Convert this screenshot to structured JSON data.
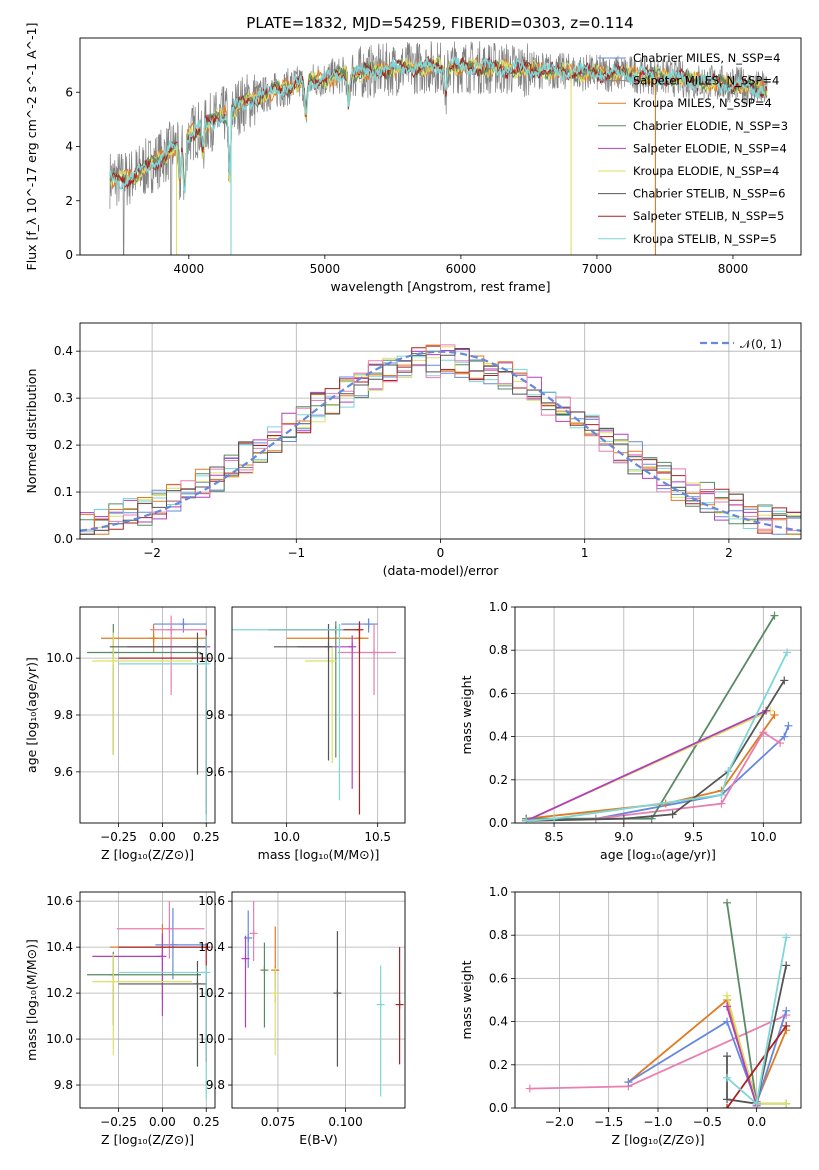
{
  "page_title": "PLATE=1832, MJD=54259, FIBERID=0303, z=0.114",
  "palette": {
    "c_miles": "#6688dd",
    "s_miles": "#888888",
    "k_miles": "#e07b22",
    "c_elodie": "#5a8a64",
    "s_elodie": "#b23fbe",
    "k_elodie": "#dde067",
    "c_stelib": "#555555",
    "s_stelib": "#aa2222",
    "k_stelib": "#7fd6d6",
    "pink": "#e87fb0",
    "gray_data": "#808080"
  },
  "chart_data": [
    {
      "id": "spectrum",
      "type": "line",
      "title": "PLATE=1832, MJD=54259, FIBERID=0303, z=0.114",
      "xlabel": "wavelength [Angstrom, rest frame]",
      "ylabel": "Flux [f_λ 10^-17 erg cm^-2 s^-1 A^-1]",
      "xlim": [
        3200,
        8500
      ],
      "ylim": [
        0,
        8
      ],
      "xticks": [
        "4000",
        "5000",
        "6000",
        "7000",
        "8000"
      ],
      "yticks": [
        "0",
        "2",
        "4",
        "6"
      ],
      "grid": false,
      "legend_position": "upper right",
      "legend": [
        {
          "label": "Chabrier MILES, N_SSP=4",
          "color": "c_miles"
        },
        {
          "label": "Salpeter MILES, N_SSP=4",
          "color": "s_miles"
        },
        {
          "label": "Kroupa MILES, N_SSP=4",
          "color": "k_miles"
        },
        {
          "label": "Chabrier ELODIE, N_SSP=3",
          "color": "c_elodie"
        },
        {
          "label": "Salpeter ELODIE, N_SSP=4",
          "color": "s_elodie"
        },
        {
          "label": "Kroupa ELODIE, N_SSP=4",
          "color": "k_elodie"
        },
        {
          "label": "Chabrier STELIB, N_SSP=6",
          "color": "c_stelib"
        },
        {
          "label": "Salpeter STELIB, N_SSP=5",
          "color": "s_stelib"
        },
        {
          "label": "Kroupa STELIB, N_SSP=5",
          "color": "k_stelib"
        }
      ],
      "continuum_points": [
        [
          3420,
          2.8
        ],
        [
          3550,
          2.8
        ],
        [
          3650,
          3.1
        ],
        [
          3800,
          3.6
        ],
        [
          3950,
          4.2
        ],
        [
          4050,
          4.6
        ],
        [
          4200,
          5.0
        ],
        [
          4400,
          5.6
        ],
        [
          4600,
          6.0
        ],
        [
          4800,
          6.3
        ],
        [
          5000,
          6.5
        ],
        [
          5200,
          6.7
        ],
        [
          5400,
          6.8
        ],
        [
          5600,
          6.9
        ],
        [
          5800,
          6.95
        ],
        [
          6000,
          6.95
        ],
        [
          6200,
          6.9
        ],
        [
          6400,
          6.85
        ],
        [
          6600,
          6.8
        ],
        [
          6800,
          6.75
        ],
        [
          7000,
          6.7
        ],
        [
          7200,
          6.7
        ],
        [
          7400,
          6.6
        ],
        [
          7600,
          6.5
        ],
        [
          7800,
          6.35
        ],
        [
          8000,
          6.3
        ],
        [
          8200,
          6.1
        ]
      ]
    },
    {
      "id": "residuals",
      "type": "line",
      "xlabel": "(data-model)/error",
      "ylabel": "Normed distribution",
      "xlim": [
        -2.5,
        2.5
      ],
      "ylim": [
        0,
        0.46
      ],
      "xticks": [
        "−2",
        "−1",
        "0",
        "1",
        "2"
      ],
      "yticks": [
        "0.0",
        "0.1",
        "0.2",
        "0.3",
        "0.4"
      ],
      "grid": true,
      "legend_position": "upper right",
      "legend": [
        {
          "label": "𝒩(0, 1)",
          "color": "c_miles"
        }
      ],
      "bin_width": 0.1
    },
    {
      "id": "age_vs_z",
      "type": "scatter",
      "xlabel": "Z [log₁₀(Z/Z⊙)]",
      "ylabel": "age  [log₁₀(age/yr)]",
      "xlim": [
        -0.47,
        0.3
      ],
      "ylim": [
        9.42,
        10.18
      ],
      "xticks": [
        "−0.25",
        "0.00",
        "0.25"
      ],
      "yticks": [
        "9.6",
        "9.8",
        "10.0"
      ],
      "grid": true,
      "points": [
        {
          "c": "c_miles",
          "x": 0.12,
          "y": 10.12,
          "xe": [
            0.17,
            0.13
          ],
          "ye": [
            0.03,
            0.02
          ]
        },
        {
          "c": "k_miles",
          "x": -0.05,
          "y": 10.07,
          "xe": [
            0.3,
            0.3
          ],
          "ye": [
            0.05,
            0.05
          ]
        },
        {
          "c": "pink",
          "x": 0.05,
          "y": 10.1,
          "xe": [
            0.12,
            0.2
          ],
          "ye": [
            0.23,
            0.05
          ]
        },
        {
          "c": "c_elodie",
          "x": -0.28,
          "y": 10.02,
          "xe": [
            0.15,
            0.5
          ],
          "ye": [
            0.36,
            0.1
          ]
        },
        {
          "c": "k_elodie",
          "x": -0.28,
          "y": 9.99,
          "xe": [
            0.12,
            0.45
          ],
          "ye": [
            0.33,
            0.1
          ]
        },
        {
          "c": "s_elodie",
          "x": 0.25,
          "y": 10.04,
          "xe": [
            0.45,
            0.0
          ],
          "ye": [
            0.55,
            0.04
          ]
        },
        {
          "c": "c_stelib",
          "x": 0.2,
          "y": 10.04,
          "xe": [
            0.5,
            0.05
          ],
          "ye": [
            0.45,
            0.05
          ]
        },
        {
          "c": "s_stelib",
          "x": 0.25,
          "y": 10.0,
          "xe": [
            0.5,
            0.0
          ],
          "ye": [
            0.55,
            0.1
          ]
        },
        {
          "c": "k_stelib",
          "x": 0.25,
          "y": 9.98,
          "xe": [
            0.5,
            0.0
          ],
          "ye": [
            0.55,
            0.1
          ]
        }
      ]
    },
    {
      "id": "age_vs_mass",
      "type": "scatter",
      "xlabel": "mass [log₁₀(M/M⊙)]",
      "xlim": [
        9.7,
        10.65
      ],
      "ylim": [
        9.42,
        10.18
      ],
      "xticks": [
        "10.0",
        "10.5"
      ],
      "yticks": [
        "9.6",
        "9.8",
        "10.0"
      ],
      "grid": true,
      "points": [
        {
          "c": "c_miles",
          "x": 10.45,
          "y": 10.12,
          "xe": [
            0.15,
            0.05
          ],
          "ye": [
            0.03,
            0.02
          ]
        },
        {
          "c": "k_miles",
          "x": 10.4,
          "y": 10.07,
          "xe": [
            0.4,
            0.05
          ],
          "ye": [
            0.05,
            0.05
          ]
        },
        {
          "c": "pink",
          "x": 10.48,
          "y": 10.02,
          "xe": [
            0.2,
            0.12
          ],
          "ye": [
            0.15,
            0.1
          ]
        },
        {
          "c": "c_elodie",
          "x": 10.27,
          "y": 10.1,
          "xe": [
            0.3,
            0.0
          ],
          "ye": [
            0.45,
            0.03
          ]
        },
        {
          "c": "s_elodie",
          "x": 10.36,
          "y": 10.04,
          "xe": [
            0.3,
            0.0
          ],
          "ye": [
            0.5,
            0.04
          ]
        },
        {
          "c": "k_elodie",
          "x": 10.25,
          "y": 9.99,
          "xe": [
            0.15,
            0.0
          ],
          "ye": [
            0.36,
            0.05
          ]
        },
        {
          "c": "c_stelib",
          "x": 10.23,
          "y": 10.04,
          "xe": [
            0.3,
            0.0
          ],
          "ye": [
            0.4,
            0.08
          ]
        },
        {
          "c": "s_stelib",
          "x": 10.4,
          "y": 10.1,
          "xe": [
            0.5,
            0.0
          ],
          "ye": [
            0.65,
            0.03
          ]
        },
        {
          "c": "k_stelib",
          "x": 10.29,
          "y": 10.1,
          "xe": [
            0.6,
            0.0
          ],
          "ye": [
            0.6,
            0.02
          ]
        }
      ]
    },
    {
      "id": "mass_weight_vs_age",
      "type": "line",
      "xlabel": "age  [log₁₀(age/yr)]",
      "ylabel": "mass weight",
      "xlim": [
        8.22,
        10.27
      ],
      "ylim": [
        0,
        1
      ],
      "xticks": [
        "8.5",
        "9.0",
        "9.5",
        "10.0"
      ],
      "yticks": [
        "0.0",
        "0.2",
        "0.4",
        "0.6",
        "0.8",
        "1.0"
      ],
      "grid": true,
      "series": [
        {
          "c": "c_miles",
          "points": [
            [
              8.3,
              0.01
            ],
            [
              8.8,
              0.02
            ],
            [
              9.7,
              0.13
            ],
            [
              10.15,
              0.4
            ],
            [
              10.18,
              0.45
            ]
          ]
        },
        {
          "c": "k_miles",
          "points": [
            [
              8.3,
              0.02
            ],
            [
              9.3,
              0.09
            ],
            [
              9.7,
              0.15
            ],
            [
              10.08,
              0.5
            ]
          ]
        },
        {
          "c": "pink",
          "points": [
            [
              8.3,
              0.01
            ],
            [
              8.8,
              0.02
            ],
            [
              9.7,
              0.09
            ],
            [
              10.0,
              0.42
            ],
            [
              10.12,
              0.37
            ]
          ]
        },
        {
          "c": "c_elodie",
          "points": [
            [
              8.3,
              0.02
            ],
            [
              9.2,
              0.02
            ],
            [
              10.08,
              0.96
            ]
          ]
        },
        {
          "c": "k_elodie",
          "points": [
            [
              8.3,
              0.01
            ],
            [
              10.05,
              0.52
            ]
          ]
        },
        {
          "c": "s_elodie",
          "points": [
            [
              8.3,
              0.01
            ],
            [
              10.02,
              0.52
            ]
          ]
        },
        {
          "c": "c_stelib",
          "points": [
            [
              8.3,
              0.01
            ],
            [
              9.0,
              0.02
            ],
            [
              9.35,
              0.04
            ],
            [
              9.75,
              0.24
            ],
            [
              10.15,
              0.66
            ]
          ]
        },
        {
          "c": "k_stelib",
          "points": [
            [
              8.3,
              0.01
            ],
            [
              8.5,
              0.02
            ],
            [
              9.7,
              0.13
            ],
            [
              9.75,
              0.24
            ],
            [
              10.17,
              0.79
            ]
          ]
        }
      ]
    },
    {
      "id": "mass_vs_z",
      "type": "scatter",
      "xlabel": "Z [log₁₀(Z/Z⊙)]",
      "ylabel": "mass [log₁₀(M/M⊙)]",
      "xlim": [
        -0.47,
        0.3
      ],
      "ylim": [
        9.7,
        10.64
      ],
      "xticks": [
        "−0.25",
        "0.00",
        "0.25"
      ],
      "yticks": [
        "9.8",
        "10.0",
        "10.2",
        "10.4",
        "10.6"
      ],
      "grid": true,
      "points": [
        {
          "c": "c_miles",
          "x": 0.06,
          "y": 10.41,
          "xe": [
            0.1,
            0.2
          ],
          "ye": [
            0.15,
            0.16
          ]
        },
        {
          "c": "pink",
          "x": 0.04,
          "y": 10.48,
          "xe": [
            0.3,
            0.2
          ],
          "ye": [
            0.13,
            0.12
          ]
        },
        {
          "c": "k_miles",
          "x": 0.0,
          "y": 10.4,
          "xe": [
            0.3,
            0.25
          ],
          "ye": [
            0.23,
            0.1
          ]
        },
        {
          "c": "s_elodie",
          "x": 0.0,
          "y": 10.36,
          "xe": [
            0.4,
            0.0
          ],
          "ye": [
            0.26,
            0.1
          ]
        },
        {
          "c": "c_elodie",
          "x": -0.28,
          "y": 10.28,
          "xe": [
            0.15,
            0.5
          ],
          "ye": [
            0.22,
            0.1
          ]
        },
        {
          "c": "k_elodie",
          "x": -0.28,
          "y": 10.25,
          "xe": [
            0.12,
            0.45
          ],
          "ye": [
            0.32,
            0.12
          ]
        },
        {
          "c": "c_stelib",
          "x": 0.2,
          "y": 10.24,
          "xe": [
            0.45,
            0.05
          ],
          "ye": [
            0.36,
            0.1
          ]
        },
        {
          "c": "s_stelib",
          "x": 0.25,
          "y": 10.4,
          "xe": [
            0.5,
            0.0
          ],
          "ye": [
            0.5,
            0.0
          ]
        },
        {
          "c": "k_stelib",
          "x": 0.25,
          "y": 10.29,
          "xe": [
            0.5,
            0.0
          ],
          "ye": [
            0.55,
            0.03
          ]
        }
      ]
    },
    {
      "id": "mass_vs_ebv",
      "type": "scatter",
      "xlabel": "E(B-V)",
      "xlim": [
        0.058,
        0.122
      ],
      "ylim": [
        9.7,
        10.64
      ],
      "xticks": [
        "0.075",
        "0.100"
      ],
      "yticks": [
        "9.8",
        "10.0",
        "10.2",
        "10.4",
        "10.6"
      ],
      "grid": true,
      "points": [
        {
          "c": "c_miles",
          "x": 0.064,
          "y": 10.44,
          "ye": [
            0.13,
            0.12
          ]
        },
        {
          "c": "pink",
          "x": 0.066,
          "y": 10.46,
          "ye": [
            0.12,
            0.14
          ]
        },
        {
          "c": "s_elodie",
          "x": 0.063,
          "y": 10.35,
          "ye": [
            0.3,
            0.1
          ]
        },
        {
          "c": "k_miles",
          "x": 0.074,
          "y": 10.3,
          "ye": [
            0.14,
            0.19
          ]
        },
        {
          "c": "c_elodie",
          "x": 0.07,
          "y": 10.3,
          "ye": [
            0.25,
            0.12
          ]
        },
        {
          "c": "k_elodie",
          "x": 0.074,
          "y": 10.2,
          "ye": [
            0.27,
            0.11
          ]
        },
        {
          "c": "c_stelib",
          "x": 0.097,
          "y": 10.2,
          "ye": [
            0.32,
            0.27
          ]
        },
        {
          "c": "k_stelib",
          "x": 0.113,
          "y": 10.15,
          "ye": [
            0.4,
            0.17
          ]
        },
        {
          "c": "s_stelib",
          "x": 0.12,
          "y": 10.15,
          "ye": [
            0.26,
            0.25
          ]
        }
      ]
    },
    {
      "id": "mass_weight_vs_z",
      "type": "line",
      "xlabel": "Z [log₁₀(Z/Z⊙)]",
      "ylabel": "mass weight",
      "xlim": [
        -2.45,
        0.45
      ],
      "ylim": [
        0,
        1
      ],
      "xticks": [
        "−2.0",
        "−1.5",
        "−1.0",
        "−0.5",
        "0.0"
      ],
      "yticks": [
        "0.0",
        "0.2",
        "0.4",
        "0.6",
        "0.8",
        "1.0"
      ],
      "grid": true,
      "series": [
        {
          "c": "pink",
          "points": [
            [
              -2.3,
              0.09
            ],
            [
              -1.3,
              0.1
            ],
            [
              0.3,
              0.43
            ]
          ]
        },
        {
          "c": "k_miles",
          "points": [
            [
              -1.3,
              0.12
            ],
            [
              -0.3,
              0.5
            ],
            [
              0.0,
              0.03
            ],
            [
              0.3,
              0.36
            ]
          ]
        },
        {
          "c": "c_miles",
          "points": [
            [
              -1.3,
              0.12
            ],
            [
              -0.3,
              0.4
            ],
            [
              0.0,
              0.02
            ],
            [
              0.3,
              0.45
            ]
          ]
        },
        {
          "c": "c_elodie",
          "points": [
            [
              -0.3,
              0.95
            ],
            [
              0.0,
              0.02
            ],
            [
              0.3,
              0.02
            ]
          ]
        },
        {
          "c": "k_elodie",
          "points": [
            [
              -0.3,
              0.52
            ],
            [
              0.0,
              0.02
            ],
            [
              0.3,
              0.02
            ]
          ]
        },
        {
          "c": "s_elodie",
          "points": [
            [
              -0.3,
              0.47
            ],
            [
              0.0,
              0.01
            ]
          ]
        },
        {
          "c": "c_stelib",
          "points": [
            [
              -0.3,
              0.24
            ],
            [
              -0.3,
              0.04
            ],
            [
              0.0,
              0.02
            ],
            [
              0.3,
              0.66
            ]
          ]
        },
        {
          "c": "s_stelib",
          "points": [
            [
              -0.3,
              0.0
            ],
            [
              0.3,
              0.38
            ]
          ]
        },
        {
          "c": "k_stelib",
          "points": [
            [
              -0.3,
              0.14
            ],
            [
              0.0,
              0.02
            ],
            [
              0.3,
              0.79
            ]
          ]
        }
      ]
    }
  ]
}
